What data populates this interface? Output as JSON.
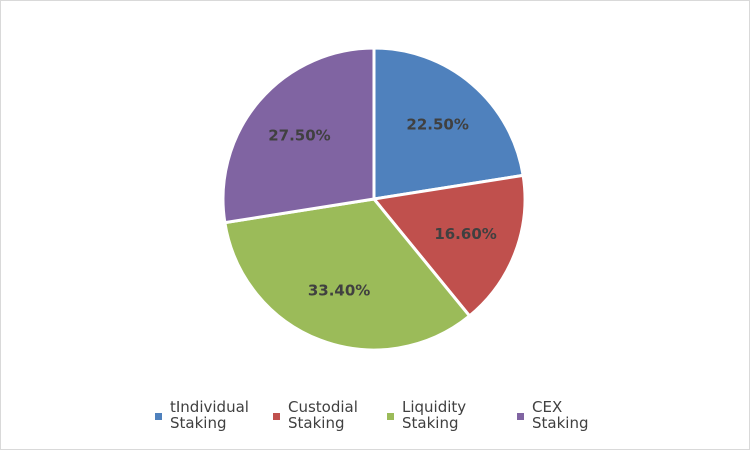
{
  "chart_data": {
    "type": "pie",
    "categories": [
      "tIndividual\nStaking",
      "Custodial\nStaking",
      "Liquidity\nStaking",
      "CEX\nStaking"
    ],
    "values": [
      22.5,
      16.6,
      33.4,
      27.5
    ],
    "data_labels": [
      "22.50%",
      "16.60%",
      "33.40%",
      "27.50%"
    ],
    "colors": [
      "#4f81bd",
      "#c0504d",
      "#9bbb59",
      "#8064a2"
    ],
    "start_angle_deg": 0,
    "direction": "clockwise",
    "legend_position": "bottom",
    "title": ""
  }
}
